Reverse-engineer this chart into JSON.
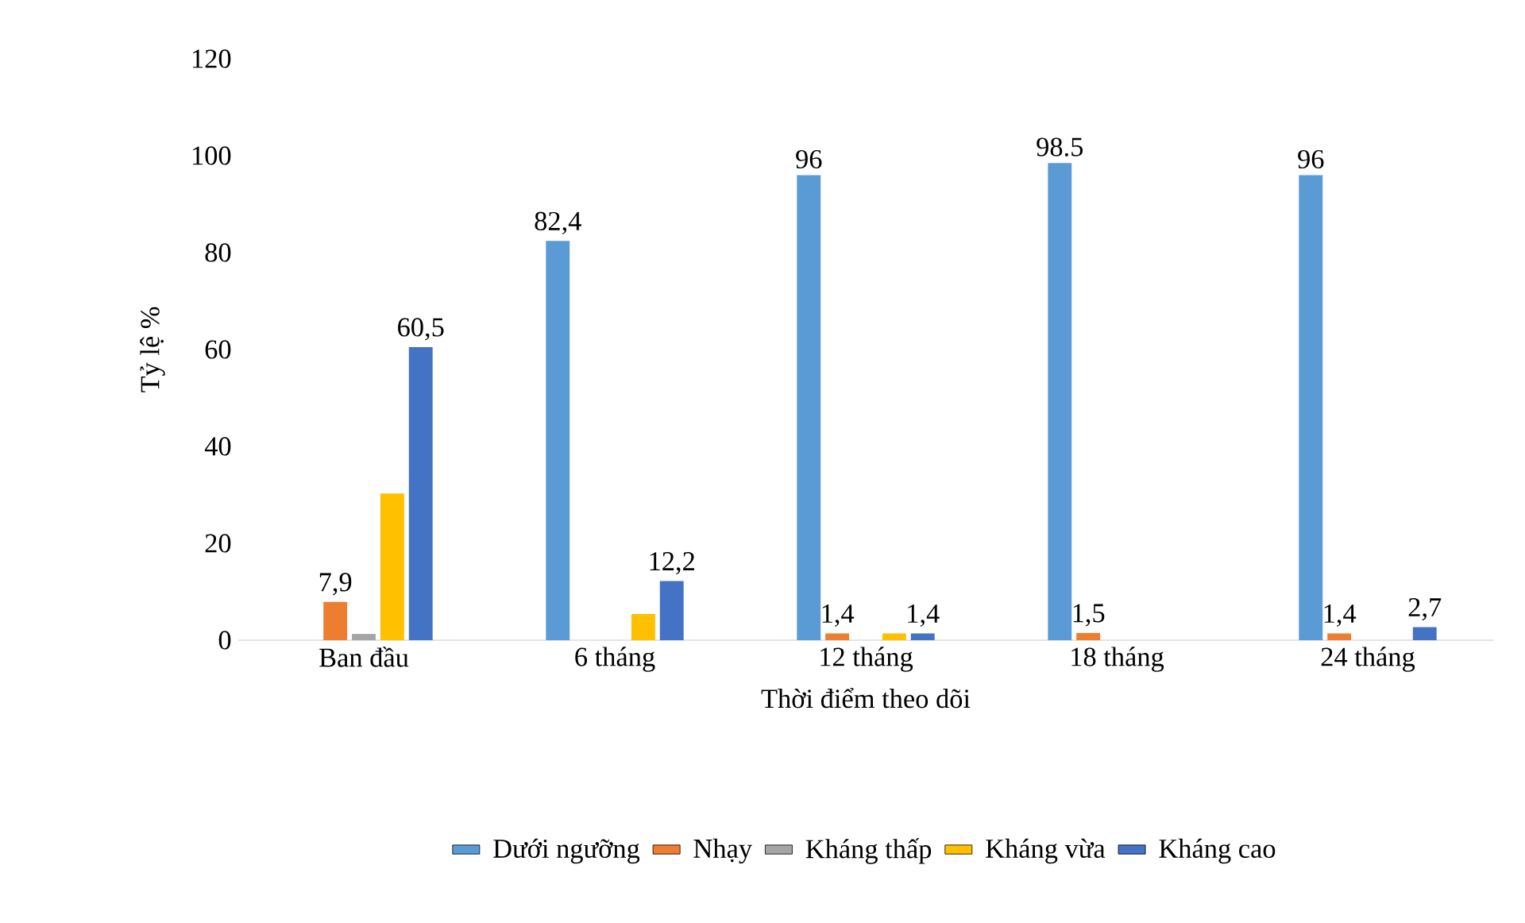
{
  "chart_data": {
    "type": "bar",
    "xlabel": "Thời điểm theo dõi",
    "ylabel": "Tỷ lệ %",
    "categories": [
      "Ban đầu",
      "6 tháng",
      "12 tháng",
      "18 tháng",
      "24 tháng"
    ],
    "ylim": [
      0,
      120
    ],
    "yticks": [
      0,
      20,
      40,
      60,
      80,
      100,
      120
    ],
    "legend": "bottom",
    "series": [
      {
        "name": "Dưới ngưỡng",
        "color": "#5b9bd5",
        "values": [
          0,
          82.4,
          96,
          98.5,
          96
        ],
        "value_labels": [
          null,
          "82,4",
          "96",
          "98.5",
          "96"
        ]
      },
      {
        "name": "Nhạy",
        "color": "#ed7d31",
        "values": [
          7.9,
          0,
          1.4,
          1.5,
          1.4
        ],
        "value_labels": [
          "7,9",
          null,
          "1,4",
          "1,5",
          "1,4"
        ]
      },
      {
        "name": "Kháng thấp",
        "color": "#a5a5a5",
        "values": [
          1.3,
          0,
          0,
          0,
          0
        ]
      },
      {
        "name": "Kháng vừa",
        "color": "#ffc000",
        "values": [
          30.3,
          5.4,
          1.4,
          0,
          0
        ]
      },
      {
        "name": "Kháng cao",
        "color": "#4472c4",
        "values": [
          60.5,
          12.2,
          1.4,
          0,
          2.7
        ],
        "value_labels": [
          "60,5",
          "12,2",
          "1,4",
          null,
          "2,7"
        ]
      }
    ]
  }
}
